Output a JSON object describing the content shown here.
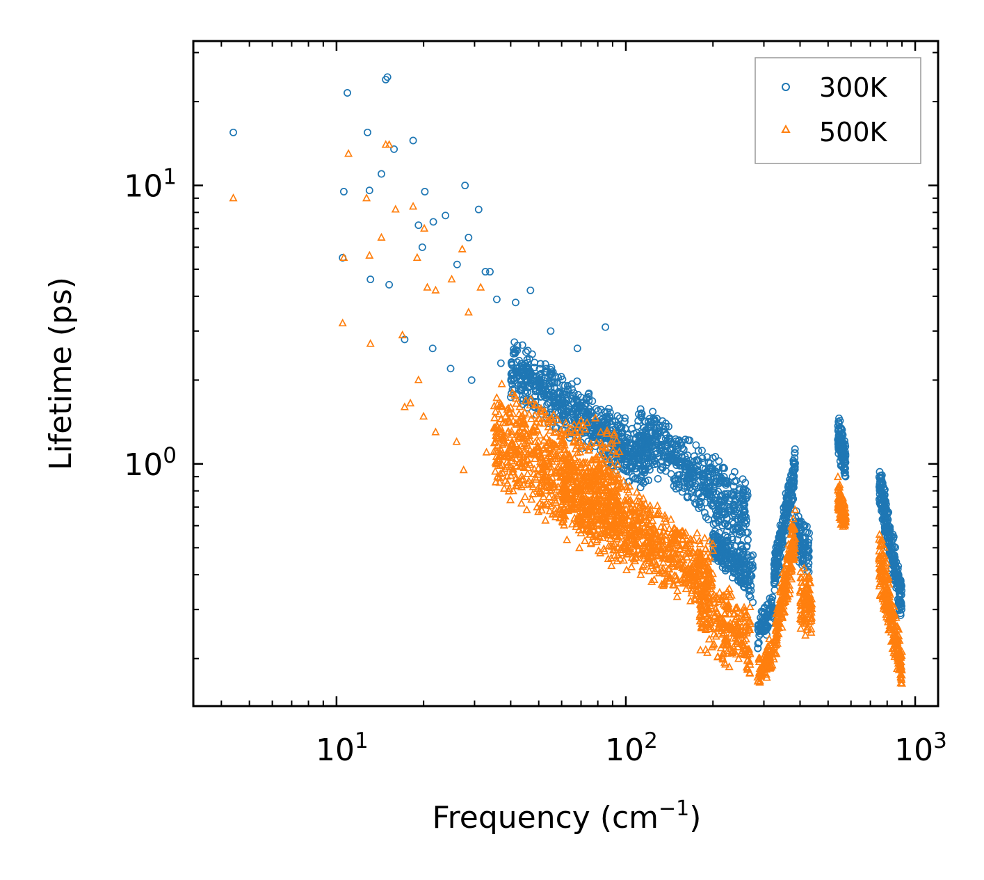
{
  "chart_data": {
    "type": "scatter",
    "title": "",
    "xlabel": "Frequency (cm",
    "xlabel_sup": "−1",
    "xlabel_close": ")",
    "ylabel": "Lifetime (ps)",
    "xscale": "log",
    "yscale": "log",
    "xlim": [
      3.2,
      1200
    ],
    "ylim": [
      0.135,
      33
    ],
    "x_ticks": [
      {
        "value": 10,
        "base": "10",
        "exp": "1"
      },
      {
        "value": 100,
        "base": "10",
        "exp": "2"
      },
      {
        "value": 1000,
        "base": "10",
        "exp": "3"
      }
    ],
    "y_ticks": [
      {
        "value": 1,
        "base": "10",
        "exp": "0"
      },
      {
        "value": 10,
        "base": "10",
        "exp": "1"
      }
    ],
    "grid": false,
    "legend_position": "top-right",
    "series": [
      {
        "name": "300K",
        "marker": "circle-open",
        "color": "#1f77b4",
        "points": [
          [
            4.4,
            15.5
          ],
          [
            10.6,
            9.5
          ],
          [
            10.9,
            21.5
          ],
          [
            12.8,
            15.5
          ],
          [
            13.0,
            9.6
          ],
          [
            14.3,
            11.0
          ],
          [
            14.8,
            24.0
          ],
          [
            15.0,
            24.5
          ],
          [
            15.8,
            13.5
          ],
          [
            18.4,
            14.5
          ],
          [
            19.2,
            7.2
          ],
          [
            20.2,
            9.5
          ],
          [
            21.6,
            7.4
          ],
          [
            23.8,
            7.8
          ],
          [
            27.8,
            10.0
          ],
          [
            28.6,
            6.5
          ],
          [
            31.0,
            8.2
          ],
          [
            10.5,
            5.5
          ],
          [
            13.1,
            4.6
          ],
          [
            15.2,
            4.4
          ],
          [
            19.8,
            6.0
          ],
          [
            26.1,
            5.2
          ],
          [
            32.7,
            4.9
          ],
          [
            33.9,
            4.9
          ],
          [
            41.6,
            3.8
          ],
          [
            46.8,
            4.2
          ],
          [
            35.8,
            3.9
          ],
          [
            85.0,
            3.1
          ],
          [
            55.0,
            3.0
          ],
          [
            68.0,
            2.6
          ],
          [
            17.2,
            2.8
          ],
          [
            21.5,
            2.6
          ],
          [
            24.8,
            2.2
          ],
          [
            29.3,
            2.0
          ],
          [
            37.0,
            2.3
          ],
          [
            45.0,
            2.1
          ]
        ],
        "clusters": [
          {
            "x": [
              40,
              120
            ],
            "y_start": [
              3.0,
              1.7
            ],
            "y_end": [
              1.3,
              0.75
            ],
            "n": 700
          },
          {
            "x": [
              110,
              265
            ],
            "y_start": [
              1.7,
              1.0
            ],
            "y_end": [
              0.9,
              0.46
            ],
            "n": 520
          },
          {
            "x": [
              200,
              275
            ],
            "y_start": [
              0.62,
              0.45
            ],
            "y_end": [
              0.5,
              0.31
            ],
            "n": 220
          },
          {
            "x": [
              285,
              325
            ],
            "y_start": [
              0.28,
              0.21
            ],
            "y_end": [
              0.38,
              0.26
            ],
            "n": 80
          },
          {
            "x": [
              325,
              385
            ],
            "y_start": [
              0.48,
              0.33
            ],
            "y_end": [
              1.2,
              0.8
            ],
            "n": 220
          },
          {
            "x": [
              385,
              430
            ],
            "y_start": [
              0.7,
              0.45
            ],
            "y_end": [
              0.62,
              0.37
            ],
            "n": 110
          },
          {
            "x": [
              540,
              575
            ],
            "y_start": [
              1.55,
              1.05
            ],
            "y_end": [
              1.2,
              0.85
            ],
            "n": 120
          },
          {
            "x": [
              750,
              900
            ],
            "y_start": [
              1.1,
              0.7
            ],
            "y_end": [
              0.38,
              0.26
            ],
            "n": 260
          }
        ]
      },
      {
        "name": "500K",
        "marker": "triangle-open",
        "color": "#ff7f0e",
        "points": [
          [
            4.4,
            9.0
          ],
          [
            10.6,
            5.5
          ],
          [
            11.0,
            13.0
          ],
          [
            12.7,
            9.0
          ],
          [
            13.0,
            5.6
          ],
          [
            14.3,
            6.5
          ],
          [
            14.8,
            14.0
          ],
          [
            15.2,
            14.0
          ],
          [
            16.0,
            8.2
          ],
          [
            18.4,
            8.4
          ],
          [
            19.0,
            5.5
          ],
          [
            20.1,
            7.0
          ],
          [
            10.5,
            3.2
          ],
          [
            13.1,
            2.7
          ],
          [
            16.9,
            2.9
          ],
          [
            19.2,
            2.0
          ],
          [
            20.6,
            4.3
          ],
          [
            22.0,
            4.2
          ],
          [
            25.0,
            4.6
          ],
          [
            27.2,
            5.9
          ],
          [
            28.6,
            3.5
          ],
          [
            31.5,
            4.3
          ],
          [
            17.2,
            1.6
          ],
          [
            18.0,
            1.65
          ],
          [
            20.0,
            1.48
          ],
          [
            22.0,
            1.3
          ],
          [
            26.0,
            1.2
          ],
          [
            27.5,
            0.95
          ],
          [
            33.0,
            1.1
          ],
          [
            36.0,
            0.9
          ]
        ],
        "clusters": [
          {
            "x": [
              35,
              95
            ],
            "y_start": [
              2.0,
              0.75
            ],
            "y_end": [
              1.4,
              0.4
            ],
            "n": 700
          },
          {
            "x": [
              60,
              200
            ],
            "y_start": [
              1.3,
              0.55
            ],
            "y_end": [
              0.55,
              0.27
            ],
            "n": 900
          },
          {
            "x": [
              180,
              270
            ],
            "y_start": [
              0.45,
              0.2
            ],
            "y_end": [
              0.32,
              0.17
            ],
            "n": 260
          },
          {
            "x": [
              285,
              330
            ],
            "y_start": [
              0.2,
              0.155
            ],
            "y_end": [
              0.26,
              0.18
            ],
            "n": 90
          },
          {
            "x": [
              330,
              385
            ],
            "y_start": [
              0.3,
              0.2
            ],
            "y_end": [
              0.75,
              0.42
            ],
            "n": 200
          },
          {
            "x": [
              400,
              440
            ],
            "y_start": [
              0.45,
              0.24
            ],
            "y_end": [
              0.42,
              0.23
            ],
            "n": 100
          },
          {
            "x": [
              540,
              575
            ],
            "y_start": [
              0.92,
              0.62
            ],
            "y_end": [
              0.72,
              0.57
            ],
            "n": 110
          },
          {
            "x": [
              750,
              900
            ],
            "y_start": [
              0.65,
              0.33
            ],
            "y_end": [
              0.22,
              0.15
            ],
            "n": 260
          }
        ]
      }
    ]
  }
}
